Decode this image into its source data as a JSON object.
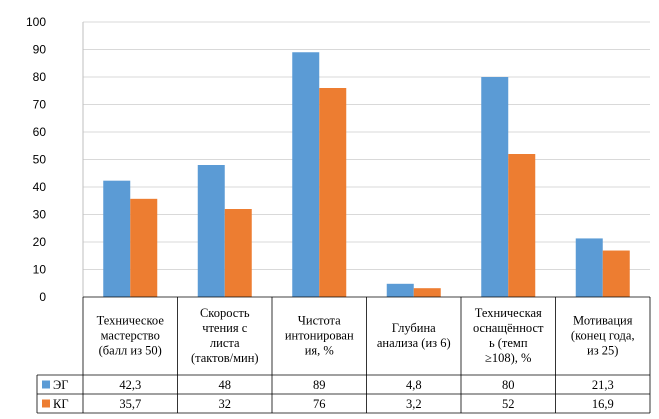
{
  "chart_data": {
    "type": "bar",
    "title": "",
    "xlabel": "",
    "ylabel": "",
    "ylim": [
      0,
      100
    ],
    "yticks": [
      0,
      10,
      20,
      30,
      40,
      50,
      60,
      70,
      80,
      90,
      100
    ],
    "grid": true,
    "legend": "in-table",
    "categories": [
      [
        "Техническое",
        "мастерство",
        "(балл из 50)"
      ],
      [
        "Скорость",
        "чтения с",
        "листа",
        "(тактов/мин)"
      ],
      [
        "Чистота",
        "интонирован",
        "ия, %"
      ],
      [
        "Глубина",
        "анализа (из 6)"
      ],
      [
        "Техническая",
        "оснащённост",
        "ь (темп",
        "≥108), %"
      ],
      [
        "Мотивация",
        "(конец года,",
        "из 25)"
      ]
    ],
    "series": [
      {
        "name": "ЭГ",
        "color": "#5b9bd5",
        "values": [
          42.3,
          48,
          89,
          4.8,
          80,
          21.3
        ],
        "labels": [
          "42,3",
          "48",
          "89",
          "4,8",
          "80",
          "21,3"
        ]
      },
      {
        "name": "КГ",
        "color": "#ed7d31",
        "values": [
          35.7,
          32,
          76,
          3.2,
          52,
          16.9
        ],
        "labels": [
          "35,7",
          "32",
          "76",
          "3,2",
          "52",
          "16,9"
        ]
      }
    ],
    "colors": {
      "grid": "#d9d9d9",
      "axis": "#bfbfbf",
      "table_border": "#000000",
      "text": "#000000"
    }
  }
}
